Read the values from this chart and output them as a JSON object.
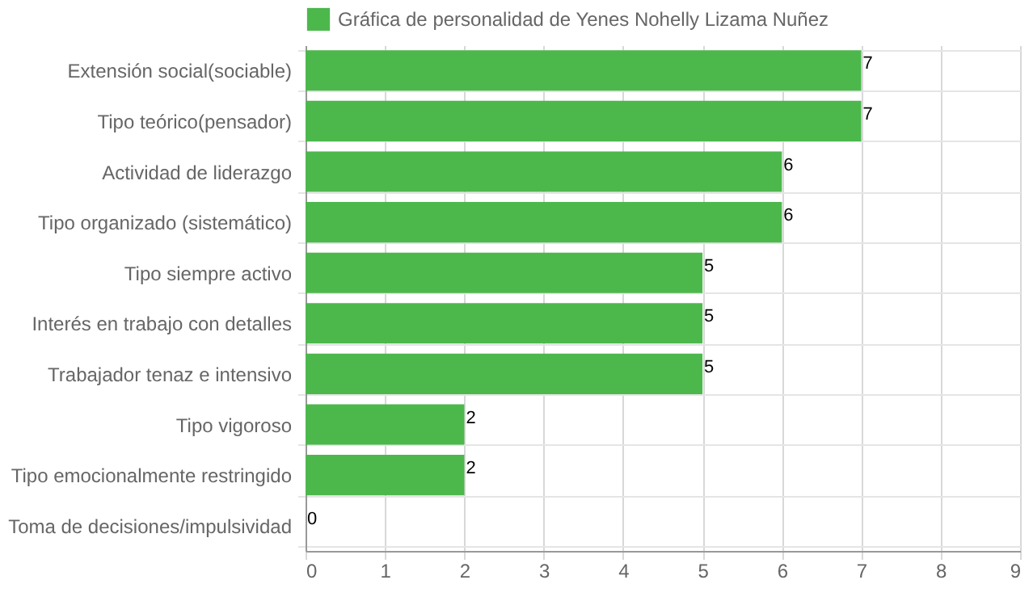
{
  "chart_data": {
    "type": "bar",
    "orientation": "horizontal",
    "categories": [
      "Extensión social(sociable)",
      "Tipo teórico(pensador)",
      "Actividad de liderazgo",
      "Tipo organizado (sistemático)",
      "Tipo siempre activo",
      "Interés en trabajo con detalles",
      "Trabajador tenaz e intensivo",
      "Tipo vigoroso",
      "Tipo emocionalmente restringido",
      "Toma de decisiones/impulsividad"
    ],
    "series": [
      {
        "name": "Gráfica de personalidad de Yenes Nohelly Lizama Nuñez",
        "color": "#4cb84c",
        "values": [
          7,
          7,
          6,
          6,
          5,
          5,
          5,
          2,
          2,
          0
        ]
      }
    ],
    "xlim": [
      0,
      9
    ],
    "xticks": [
      0,
      1,
      2,
      3,
      4,
      5,
      6,
      7,
      8,
      9
    ],
    "grid": true,
    "legend": "top",
    "data_labels": true
  }
}
